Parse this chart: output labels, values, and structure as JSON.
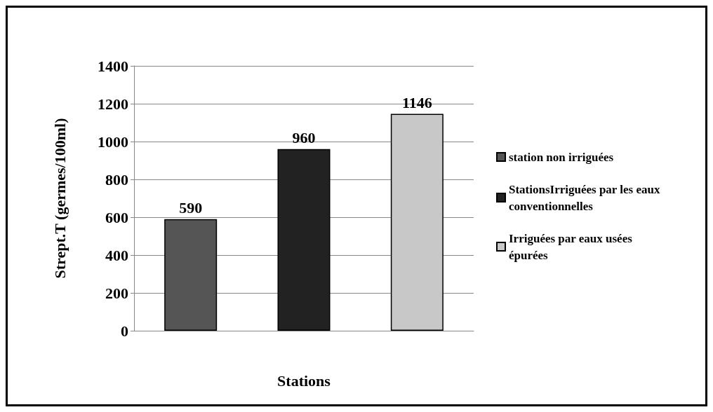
{
  "chart_data": {
    "type": "bar",
    "xlabel": "Stations",
    "ylabel": "Strept.T (germes/100ml)",
    "categories": [
      null,
      null,
      null
    ],
    "series": [
      {
        "name": "station non irriguées",
        "color": "#555555",
        "values": [
          590,
          null,
          null
        ]
      },
      {
        "name": "StationsIrriguées par les eaux conventionnelles",
        "color": "#222222",
        "values": [
          null,
          960,
          null
        ]
      },
      {
        "name": "Irriguées par eaux usées épurées",
        "color": "#c8c8c8",
        "values": [
          null,
          null,
          1146
        ]
      }
    ],
    "ylim": [
      0,
      1400
    ],
    "yticks": [
      0,
      200,
      400,
      600,
      800,
      1000,
      1200,
      1400
    ],
    "grid": "y",
    "legend": "right",
    "data_labels": true
  }
}
